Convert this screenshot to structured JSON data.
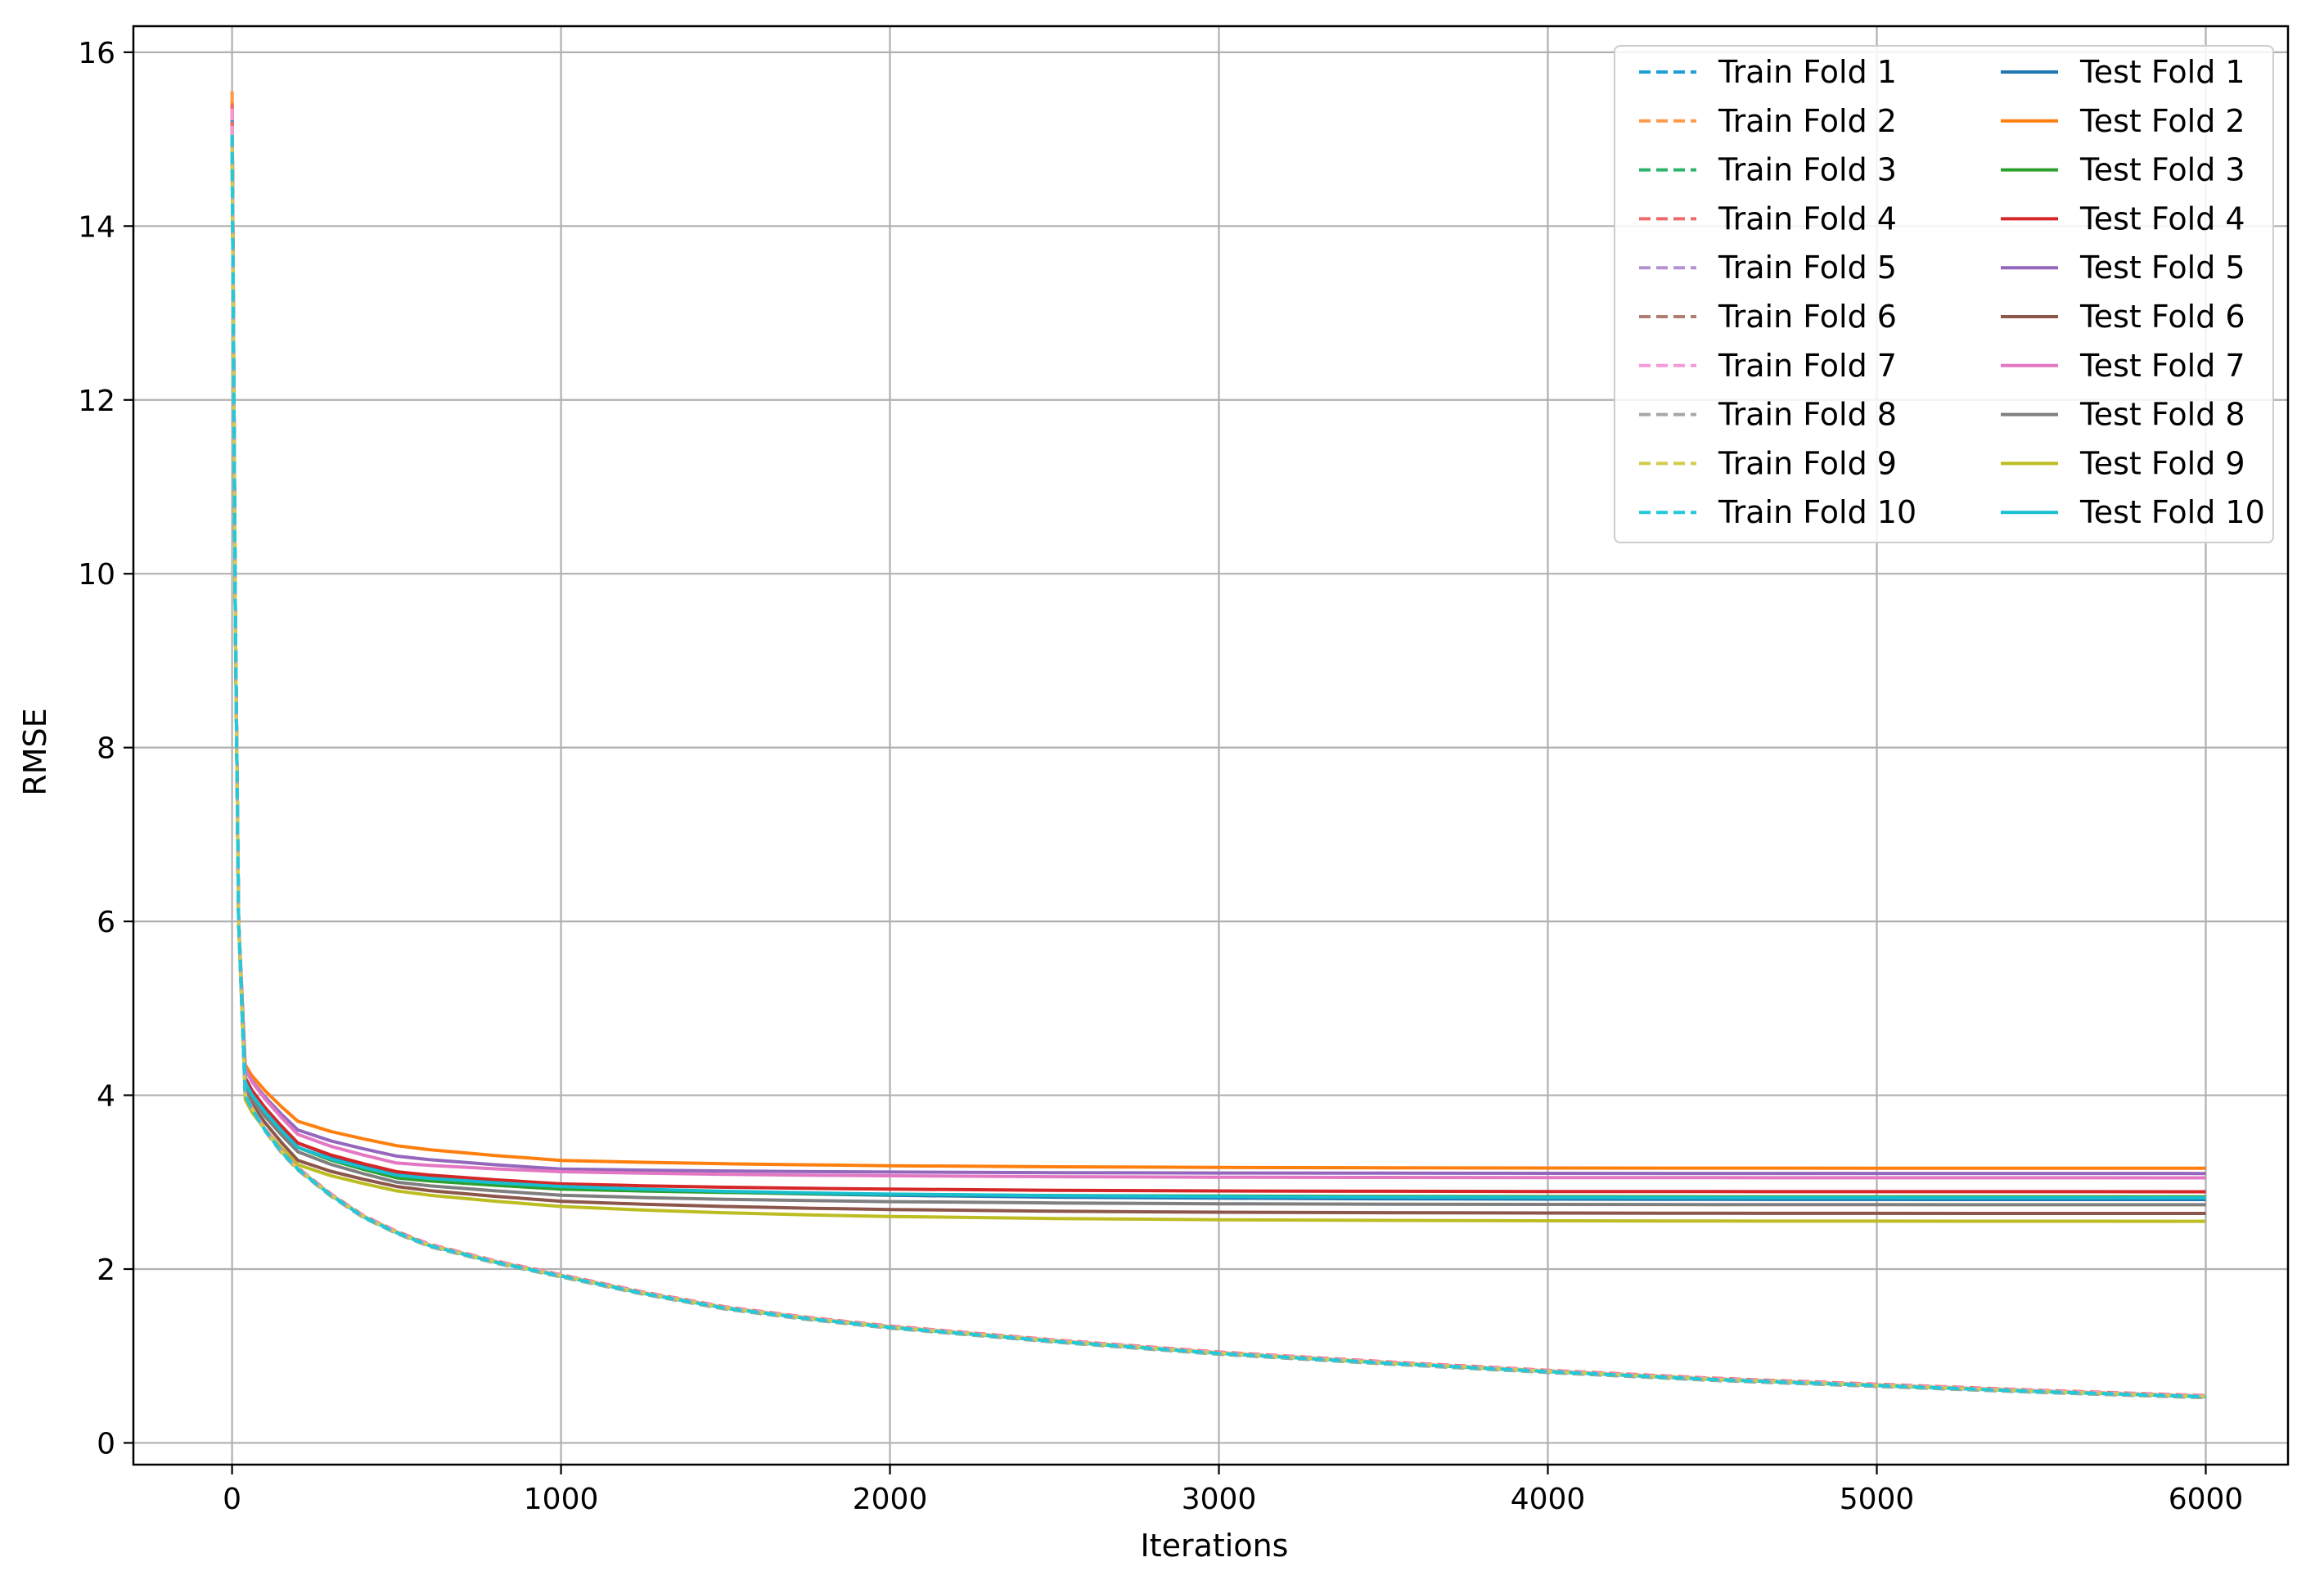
{
  "chart_data": {
    "type": "line",
    "xlabel": "Iterations",
    "ylabel": "RMSE",
    "xlim": [
      -300,
      6250
    ],
    "ylim": [
      -0.25,
      16.3
    ],
    "xticks": [
      0,
      1000,
      2000,
      3000,
      4000,
      5000,
      6000
    ],
    "yticks": [
      0,
      2,
      4,
      6,
      8,
      10,
      12,
      14,
      16
    ],
    "grid": true,
    "legend_position": "top-right",
    "legend_columns": 2,
    "x": [
      0,
      10,
      20,
      40,
      60,
      100,
      150,
      200,
      300,
      400,
      500,
      600,
      800,
      1000,
      1250,
      1500,
      1750,
      2000,
      2500,
      3000,
      3500,
      4000,
      4500,
      5000,
      5500,
      6000
    ],
    "train_shape": [
      15.0,
      9.5,
      6.0,
      4.0,
      3.85,
      3.6,
      3.35,
      3.15,
      2.85,
      2.6,
      2.42,
      2.27,
      2.08,
      1.92,
      1.72,
      1.55,
      1.43,
      1.33,
      1.17,
      1.03,
      0.92,
      0.82,
      0.73,
      0.66,
      0.59,
      0.53
    ],
    "series": [
      {
        "name": "Train Fold 1",
        "kind": "train",
        "color": "#1f9fd6",
        "start": 15.3,
        "offset": 0.0
      },
      {
        "name": "Train Fold 2",
        "kind": "train",
        "color": "#ff9a4a",
        "start": 15.55,
        "offset": 0.01
      },
      {
        "name": "Train Fold 3",
        "kind": "train",
        "color": "#2cb56a",
        "start": 15.2,
        "offset": -0.01
      },
      {
        "name": "Train Fold 4",
        "kind": "train",
        "color": "#ef6a6a",
        "start": 15.4,
        "offset": 0.015
      },
      {
        "name": "Train Fold 5",
        "kind": "train",
        "color": "#b591d1",
        "start": 15.1,
        "offset": 0.005
      },
      {
        "name": "Train Fold 6",
        "kind": "train",
        "color": "#b07f74",
        "start": 15.0,
        "offset": -0.005
      },
      {
        "name": "Train Fold 7",
        "kind": "train",
        "color": "#f59ad6",
        "start": 15.35,
        "offset": 0.008
      },
      {
        "name": "Train Fold 8",
        "kind": "train",
        "color": "#a7a7a7",
        "start": 15.0,
        "offset": -0.008
      },
      {
        "name": "Train Fold 9",
        "kind": "train",
        "color": "#cfcd4a",
        "start": 14.9,
        "offset": 0.003
      },
      {
        "name": "Train Fold 10",
        "kind": "train",
        "color": "#22c9d9",
        "start": 15.05,
        "offset": 0.0
      },
      {
        "name": "Test Fold 1",
        "kind": "test",
        "color": "#1f77b4",
        "start": 15.3,
        "y40": 4.2,
        "y200": 3.45,
        "y500": 3.1,
        "y1000": 2.95,
        "final": 2.8
      },
      {
        "name": "Test Fold 2",
        "kind": "test",
        "color": "#ff7f0e",
        "start": 15.55,
        "y40": 4.35,
        "y200": 3.7,
        "y500": 3.42,
        "y1000": 3.25,
        "final": 3.16
      },
      {
        "name": "Test Fold 3",
        "kind": "test",
        "color": "#2ca02c",
        "start": 15.2,
        "y40": 4.15,
        "y200": 3.4,
        "y500": 3.05,
        "y1000": 2.92,
        "final": 2.83
      },
      {
        "name": "Test Fold 4",
        "kind": "test",
        "color": "#d62728",
        "start": 15.4,
        "y40": 4.2,
        "y200": 3.45,
        "y500": 3.12,
        "y1000": 2.98,
        "final": 2.89
      },
      {
        "name": "Test Fold 5",
        "kind": "test",
        "color": "#9467bd",
        "start": 15.1,
        "y40": 4.3,
        "y200": 3.6,
        "y500": 3.3,
        "y1000": 3.15,
        "final": 3.1
      },
      {
        "name": "Test Fold 6",
        "kind": "test",
        "color": "#8c564b",
        "start": 15.0,
        "y40": 4.05,
        "y200": 3.25,
        "y500": 2.95,
        "y1000": 2.78,
        "final": 2.64
      },
      {
        "name": "Test Fold 7",
        "kind": "test",
        "color": "#e377c2",
        "start": 15.35,
        "y40": 4.3,
        "y200": 3.55,
        "y500": 3.22,
        "y1000": 3.12,
        "final": 3.05
      },
      {
        "name": "Test Fold 8",
        "kind": "test",
        "color": "#7f7f7f",
        "start": 15.0,
        "y40": 4.1,
        "y200": 3.35,
        "y500": 3.0,
        "y1000": 2.85,
        "final": 2.74
      },
      {
        "name": "Test Fold 9",
        "kind": "test",
        "color": "#bcbd22",
        "start": 14.9,
        "y40": 3.95,
        "y200": 3.2,
        "y500": 2.9,
        "y1000": 2.72,
        "final": 2.55
      },
      {
        "name": "Test Fold 10",
        "kind": "test",
        "color": "#17becf",
        "start": 15.05,
        "y40": 4.15,
        "y200": 3.4,
        "y500": 3.08,
        "y1000": 2.95,
        "final": 2.82
      }
    ]
  }
}
